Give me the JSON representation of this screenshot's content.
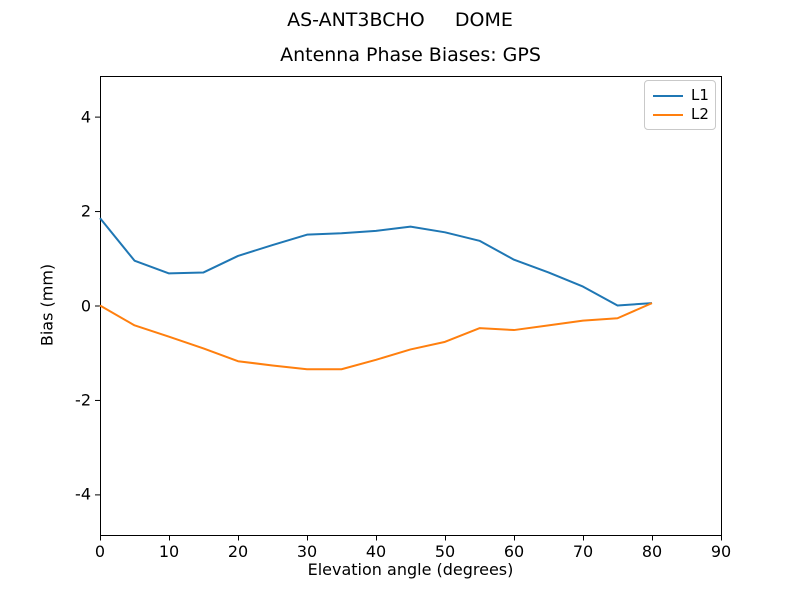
{
  "chart_data": {
    "type": "line",
    "suptitle": "AS-ANT3BCHO     DOME",
    "title": "Antenna Phase Biases: GPS",
    "xlabel": "Elevation angle (degrees)",
    "ylabel": "Bias (mm)",
    "x": [
      0,
      5,
      10,
      15,
      20,
      25,
      30,
      35,
      40,
      45,
      50,
      55,
      60,
      65,
      70,
      75,
      80
    ],
    "series": [
      {
        "name": "L1",
        "color": "#1f77b4",
        "values": [
          1.85,
          0.95,
          0.68,
          0.7,
          1.05,
          1.28,
          1.5,
          1.53,
          1.58,
          1.67,
          1.55,
          1.37,
          0.97,
          0.7,
          0.4,
          0.0,
          0.05
        ]
      },
      {
        "name": "L2",
        "color": "#ff7f0e",
        "values": [
          0.0,
          -0.42,
          -0.66,
          -0.91,
          -1.18,
          -1.27,
          -1.35,
          -1.35,
          -1.15,
          -0.93,
          -0.77,
          -0.48,
          -0.52,
          -0.42,
          -0.32,
          -0.27,
          0.05
        ]
      }
    ],
    "xlim": [
      0,
      90
    ],
    "ylim": [
      -4.86,
      4.86
    ],
    "xticks": [
      0,
      10,
      20,
      30,
      40,
      50,
      60,
      70,
      80,
      90
    ],
    "yticks": [
      -4,
      -2,
      0,
      2,
      4
    ],
    "grid": false,
    "legend_position": "upper right",
    "axis_color": "#000000",
    "background_color": "#ffffff"
  }
}
